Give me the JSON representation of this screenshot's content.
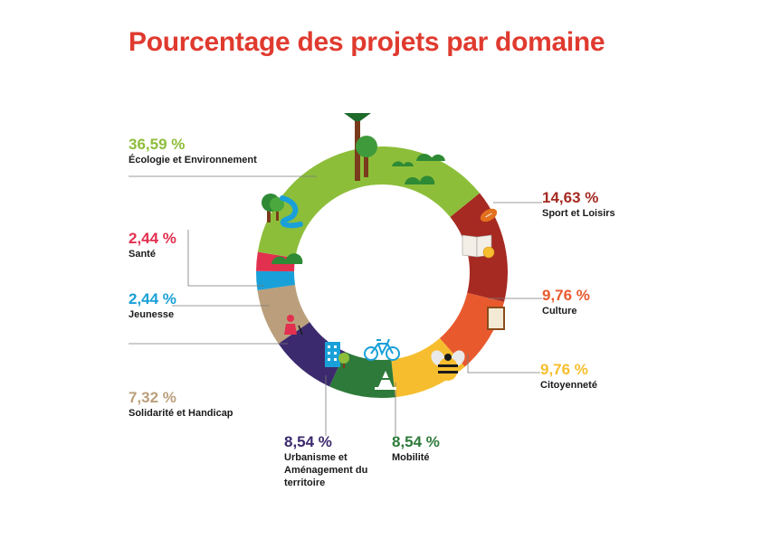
{
  "title": "Pourcentage des projets par domaine",
  "chart_data": {
    "type": "pie",
    "variant": "donut",
    "title": "Pourcentage des projets par domaine",
    "unit": "%",
    "slices": [
      {
        "label": "Sport et Loisirs",
        "value": 14.63,
        "value_text": "14,63 %",
        "color": "#a62a22"
      },
      {
        "label": "Culture",
        "value": 9.76,
        "value_text": "9,76 %",
        "color": "#e85a2e"
      },
      {
        "label": "Citoyenneté",
        "value": 9.76,
        "value_text": "9,76 %",
        "color": "#f6be2e"
      },
      {
        "label": "Mobilité",
        "value": 8.54,
        "value_text": "8,54 %",
        "color": "#2e7a3a"
      },
      {
        "label": "Urbanisme et Aménagement du territoire",
        "value": 8.54,
        "value_text": "8,54 %",
        "color": "#3c2a6e"
      },
      {
        "label": "Solidarité et Handicap",
        "value": 7.32,
        "value_text": "7,32 %",
        "color": "#bb9f7c"
      },
      {
        "label": "Jeunesse",
        "value": 2.44,
        "value_text": "2,44 %",
        "color": "#1aa0d8"
      },
      {
        "label": "Santé",
        "value": 2.44,
        "value_text": "2,44 %",
        "color": "#e2304f"
      },
      {
        "label": "Écologie et Environnement",
        "value": 36.59,
        "value_text": "36,59 %",
        "color": "#8dbe3a"
      }
    ],
    "start_angle_deg": 51,
    "direction": "clockwise",
    "icons": [
      "trees-icon",
      "river-icon",
      "rugby-ball-icon",
      "book-icon",
      "tennis-ball-icon",
      "frame-icon",
      "bee-icon",
      "traffic-cone-icon",
      "bicycle-icon",
      "building-icon",
      "person-with-cane-icon"
    ]
  }
}
